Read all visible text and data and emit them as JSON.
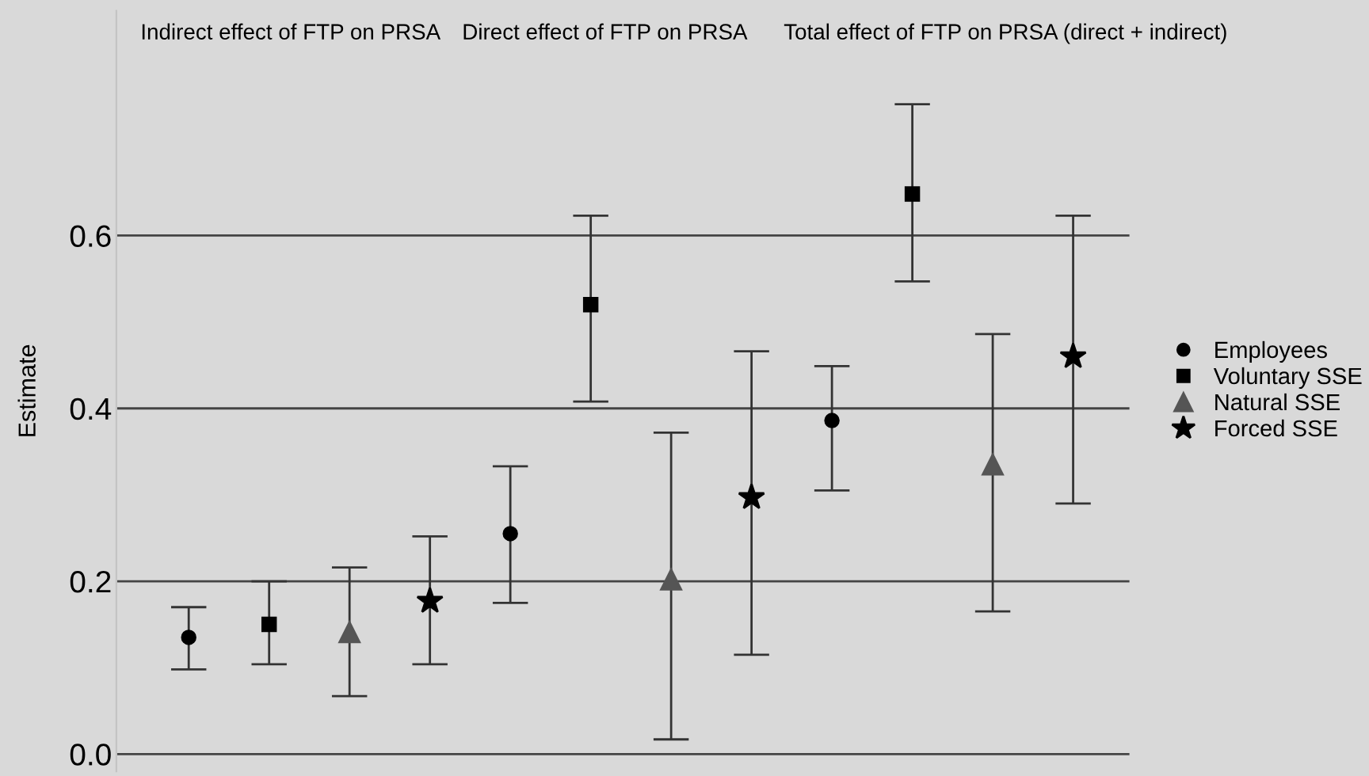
{
  "chart_data": {
    "type": "scatter",
    "ylabel": "Estimate",
    "categories": [
      null,
      null,
      null,
      null,
      null,
      null,
      null,
      null,
      null,
      null,
      null,
      null
    ],
    "annotations": [
      {
        "text": "Indirect effect of FTP on PRSA"
      },
      {
        "text": "Direct effect of FTP on PRSA"
      },
      {
        "text": "Total effect of FTP on PRSA (direct + indirect)"
      }
    ],
    "series": [
      {
        "name": "Employees",
        "color": "#000000",
        "marker": "circle",
        "values": [
          0.135,
          null,
          null,
          null,
          0.255,
          null,
          null,
          null,
          0.386,
          null,
          null,
          null
        ],
        "errors": [
          [
            0.098,
            0.17
          ],
          null,
          null,
          null,
          [
            0.175,
            0.333
          ],
          null,
          null,
          null,
          [
            0.305,
            0.449
          ],
          null,
          null,
          null
        ]
      },
      {
        "name": "Voluntary SSE",
        "color": "#000000",
        "marker": "square",
        "values": [
          null,
          0.15,
          null,
          null,
          null,
          0.52,
          null,
          null,
          null,
          0.648,
          null,
          null
        ],
        "errors": [
          null,
          [
            0.104,
            0.2
          ],
          null,
          null,
          null,
          [
            0.408,
            0.623
          ],
          null,
          null,
          null,
          [
            0.547,
            0.752
          ],
          null,
          null
        ]
      },
      {
        "name": "Natural SSE",
        "color": "#555555",
        "marker": "triangle",
        "values": [
          null,
          null,
          0.141,
          null,
          null,
          null,
          0.202,
          null,
          null,
          null,
          0.335,
          null
        ],
        "errors": [
          null,
          null,
          [
            0.067,
            0.216
          ],
          null,
          null,
          null,
          [
            0.017,
            0.372
          ],
          null,
          null,
          null,
          [
            0.165,
            0.486
          ],
          null
        ]
      },
      {
        "name": "Forced SSE",
        "color": "#000000",
        "marker": "star",
        "values": [
          null,
          null,
          null,
          0.177,
          null,
          null,
          null,
          0.297,
          null,
          null,
          null,
          0.46
        ],
        "errors": [
          null,
          null,
          null,
          [
            0.104,
            0.252
          ],
          null,
          null,
          null,
          [
            0.115,
            0.466
          ],
          null,
          null,
          null,
          [
            0.29,
            0.623
          ]
        ]
      }
    ],
    "ylim": [
      -0.02,
      0.86
    ],
    "yticks": [
      {
        "value": 0,
        "label": "0.0"
      },
      {
        "value": 0.2,
        "label": "0.2"
      },
      {
        "value": 0.4,
        "label": "0.4"
      },
      {
        "value": 0.6,
        "label": "0.6"
      }
    ],
    "tick_labels": "y",
    "grid": "y",
    "legend": "right"
  }
}
